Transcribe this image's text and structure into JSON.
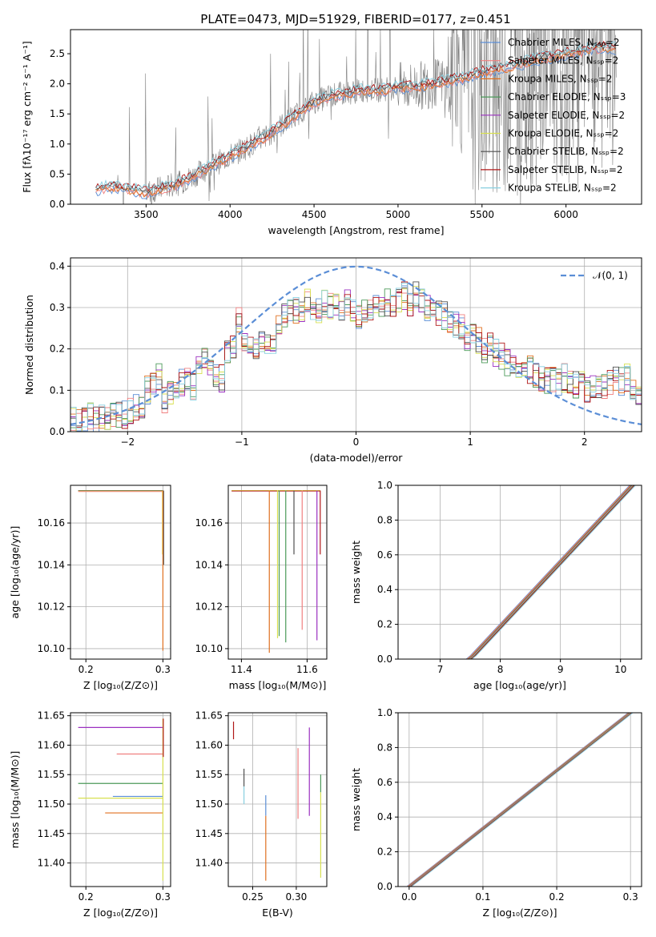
{
  "figure": {
    "title": "PLATE=0473, MJD=51929, FIBERID=0177, z=0.451"
  },
  "colors": {
    "Chabrier MILES": "#5b8ed6",
    "Salpeter MILES": "#f08080",
    "Kroupa MILES": "#e07020",
    "Chabrier ELODIE": "#4c9a5a",
    "Salpeter ELODIE": "#9b30c0",
    "Kroupa ELODIE": "#d8e050",
    "Chabrier STELIB": "#505050",
    "Salpeter STELIB": "#b01818",
    "Kroupa STELIB": "#87cfe0",
    "data": "#808080",
    "normal": "#5b8ed6"
  },
  "chart_data": [
    {
      "type": "line",
      "panel": "spectrum",
      "xlabel": "wavelength [Angstrom, rest frame]",
      "ylabel": "Flux [fλ10⁻¹⁷ erg cm⁻² s⁻¹ A⁻¹]",
      "xlim": [
        3050,
        6450
      ],
      "ylim": [
        0,
        2.9
      ],
      "xticks": [
        "3500",
        "4000",
        "4500",
        "5000",
        "5500",
        "6000"
      ],
      "yticks": [
        "0.0",
        "0.5",
        "1.0",
        "1.5",
        "2.0",
        "2.5"
      ],
      "legend": [
        "Chabrier MILES, Nₛₛₚ=2",
        "Salpeter MILES, Nₛₛₚ=2",
        "Kroupa MILES, Nₛₛₚ=2",
        "Chabrier ELODIE, Nₛₛₚ=3",
        "Salpeter ELODIE, Nₛₛₚ=2",
        "Kroupa ELODIE, Nₛₛₚ=2",
        "Chabrier STELIB, Nₛₛₚ=2",
        "Salpeter STELIB, Nₛₛₚ=2",
        "Kroupa STELIB, Nₛₛₚ=2"
      ],
      "legend_position": "upper-right",
      "model_continuum": {
        "x": [
          3200,
          3300,
          3500,
          3700,
          3800,
          3900,
          4000,
          4100,
          4200,
          4300,
          4400,
          4500,
          4600,
          4700,
          4800,
          4900,
          5000,
          5100,
          5200,
          5300,
          5400,
          5500,
          5600,
          5700,
          5800,
          5900,
          6000,
          6100,
          6200,
          6300
        ],
        "y": [
          0.25,
          0.3,
          0.2,
          0.35,
          0.5,
          0.65,
          0.8,
          0.95,
          1.1,
          1.3,
          1.5,
          1.7,
          1.8,
          1.85,
          1.9,
          1.9,
          1.95,
          1.95,
          2.0,
          2.05,
          2.1,
          2.2,
          2.25,
          2.3,
          2.4,
          2.45,
          2.5,
          2.55,
          2.6,
          2.6
        ]
      }
    },
    {
      "type": "step",
      "panel": "residual-histogram",
      "xlabel": "(data-model)/error",
      "ylabel": "Normed distribution",
      "xlim": [
        -2.5,
        2.5
      ],
      "ylim": [
        0,
        0.42
      ],
      "xticks": [
        "−2",
        "−1",
        "0",
        "1",
        "2"
      ],
      "yticks": [
        "0.0",
        "0.1",
        "0.2",
        "0.3",
        "0.4"
      ],
      "legend": [
        "𝒩(0, 1)"
      ],
      "legend_position": "upper-right",
      "bin_width": 0.1,
      "x_start": -2.5,
      "base_values": [
        0.03,
        0.025,
        0.03,
        0.035,
        0.03,
        0.035,
        0.04,
        0.04,
        0.045,
        0.04,
        0.05,
        0.055,
        0.06,
        0.1,
        0.11,
        0.13,
        0.08,
        0.09,
        0.1,
        0.12,
        0.13,
        0.11,
        0.15,
        0.17,
        0.14,
        0.13,
        0.13,
        0.19,
        0.21,
        0.27,
        0.23,
        0.2,
        0.21,
        0.22,
        0.2,
        0.22,
        0.26,
        0.28,
        0.3,
        0.29,
        0.3,
        0.31,
        0.3,
        0.29,
        0.31,
        0.3,
        0.3,
        0.29,
        0.31,
        0.3,
        0.28,
        0.3,
        0.29,
        0.31,
        0.3,
        0.31,
        0.3,
        0.32,
        0.33,
        0.31,
        0.33,
        0.32,
        0.3,
        0.31,
        0.29,
        0.28,
        0.27,
        0.26,
        0.25,
        0.23,
        0.24,
        0.22,
        0.2,
        0.21,
        0.19,
        0.18,
        0.17,
        0.16,
        0.15,
        0.14,
        0.15,
        0.14,
        0.13,
        0.12,
        0.13,
        0.12,
        0.13,
        0.12,
        0.11,
        0.12,
        0.1,
        0.11,
        0.1,
        0.11,
        0.12,
        0.13,
        0.12,
        0.13,
        0.11,
        0.1
      ],
      "normal_curve": {
        "mean": 0,
        "sigma": 1
      }
    },
    {
      "type": "line",
      "panel": "age-vs-Z",
      "xlabel": "Z [log₁₀(Z/Z⊙)]",
      "ylabel": "age  [log₁₀(age/yr)]",
      "xlim": [
        0.18,
        0.31
      ],
      "ylim": [
        10.095,
        10.178
      ],
      "xticks": [
        "0.2",
        "0.3"
      ],
      "yticks": [
        "10.10",
        "10.12",
        "10.14",
        "10.16"
      ],
      "hline_y": 10.1755,
      "hline_x": [
        0.19,
        0.3
      ],
      "vlines": [
        {
          "x": 0.2995,
          "y": [
            10.1755,
            10.145
          ],
          "c": "Kroupa ELODIE"
        },
        {
          "x": 0.3,
          "y": [
            10.1755,
            10.099
          ],
          "c": "Kroupa MILES"
        }
      ]
    },
    {
      "type": "line",
      "panel": "age-vs-mass",
      "xlabel": "mass [log₁₀(M/M⊙)]",
      "ylabel": "",
      "xlim": [
        11.36,
        11.66
      ],
      "ylim": [
        10.095,
        10.178
      ],
      "xticks": [
        "11.4",
        "11.6"
      ],
      "yticks": [
        "10.10",
        "10.12",
        "10.14",
        "10.16"
      ],
      "hline_y": 10.1755,
      "hline_x": [
        11.37,
        11.64
      ],
      "vlines": [
        {
          "x": 11.485,
          "y": [
            10.1755,
            10.098
          ],
          "c": "Kroupa MILES"
        },
        {
          "x": 11.51,
          "y": [
            10.1755,
            10.105
          ],
          "c": "Kroupa ELODIE"
        },
        {
          "x": 11.515,
          "y": [
            10.1755,
            10.106
          ],
          "c": "Chabrier ELODIE"
        },
        {
          "x": 11.535,
          "y": [
            10.1755,
            10.103
          ],
          "c": "Chabrier ELODIE"
        },
        {
          "x": 11.56,
          "y": [
            10.1755,
            10.145
          ],
          "c": "Chabrier STELIB"
        },
        {
          "x": 11.585,
          "y": [
            10.1755,
            10.109
          ],
          "c": "Salpeter MILES"
        },
        {
          "x": 11.63,
          "y": [
            10.1755,
            10.104
          ],
          "c": "Salpeter ELODIE"
        },
        {
          "x": 11.64,
          "y": [
            10.1755,
            10.145
          ],
          "c": "Salpeter STELIB"
        }
      ]
    },
    {
      "type": "line",
      "panel": "cumulative-mass-weight-vs-age",
      "xlabel": "age  [log₁₀(age/yr)]",
      "ylabel": "mass weight",
      "xlim": [
        6.3,
        10.35
      ],
      "ylim": [
        0,
        1
      ],
      "xticks": [
        "7",
        "8",
        "9",
        "10"
      ],
      "yticks": [
        "0.0",
        "0.2",
        "0.4",
        "0.6",
        "0.8",
        "1.0"
      ],
      "x": [
        6.45,
        7.48,
        7.55,
        10.2
      ],
      "y": [
        0.0,
        0.0,
        0.02,
        1.0
      ]
    },
    {
      "type": "line",
      "panel": "mass-vs-Z",
      "xlabel": "Z [log₁₀(Z/Z⊙)]",
      "ylabel": "mass [log₁₀(M/M⊙)]",
      "xlim": [
        0.18,
        0.31
      ],
      "ylim": [
        11.36,
        11.655
      ],
      "xticks": [
        "0.2",
        "0.3"
      ],
      "yticks": [
        "11.40",
        "11.45",
        "11.50",
        "11.55",
        "11.60",
        "11.65"
      ],
      "hlines": [
        {
          "y": 11.63,
          "x": [
            0.19,
            0.3
          ],
          "c": "Salpeter ELODIE"
        },
        {
          "y": 11.585,
          "x": [
            0.24,
            0.3
          ],
          "c": "Salpeter MILES"
        },
        {
          "y": 11.535,
          "x": [
            0.19,
            0.3
          ],
          "c": "Chabrier ELODIE"
        },
        {
          "y": 11.513,
          "x": [
            0.235,
            0.3
          ],
          "c": "Chabrier MILES"
        },
        {
          "y": 11.51,
          "x": [
            0.19,
            0.3
          ],
          "c": "Kroupa ELODIE"
        },
        {
          "y": 11.485,
          "x": [
            0.225,
            0.3
          ],
          "c": "Kroupa MILES"
        }
      ],
      "vline": {
        "x": 0.3,
        "y": [
          11.645,
          11.37
        ]
      }
    },
    {
      "type": "line",
      "panel": "mass-vs-EBV",
      "xlabel": "E(B-V)",
      "ylabel": "",
      "xlim": [
        0.222,
        0.335
      ],
      "ylim": [
        11.36,
        11.655
      ],
      "xticks": [
        "0.25",
        "0.30"
      ],
      "yticks": [
        "11.40",
        "11.45",
        "11.50",
        "11.55",
        "11.60",
        "11.65"
      ],
      "vlines": [
        {
          "x": 0.228,
          "y": [
            11.64,
            11.61
          ],
          "c": "Salpeter STELIB"
        },
        {
          "x": 0.24,
          "y": [
            11.56,
            11.53
          ],
          "c": "Chabrier STELIB"
        },
        {
          "x": 0.24,
          "y": [
            11.53,
            11.5
          ],
          "c": "Kroupa STELIB"
        },
        {
          "x": 0.265,
          "y": [
            11.515,
            11.48
          ],
          "c": "Chabrier MILES"
        },
        {
          "x": 0.265,
          "y": [
            11.48,
            11.37
          ],
          "c": "Kroupa MILES"
        },
        {
          "x": 0.302,
          "y": [
            11.595,
            11.475
          ],
          "c": "Salpeter MILES"
        },
        {
          "x": 0.315,
          "y": [
            11.63,
            11.48
          ],
          "c": "Salpeter ELODIE"
        },
        {
          "x": 0.328,
          "y": [
            11.55,
            11.52
          ],
          "c": "Chabrier ELODIE"
        },
        {
          "x": 0.328,
          "y": [
            11.52,
            11.375
          ],
          "c": "Kroupa ELODIE"
        }
      ]
    },
    {
      "type": "line",
      "panel": "cumulative-mass-weight-vs-Z",
      "xlabel": "Z [log₁₀(Z/Z⊙)]",
      "ylabel": "mass weight",
      "xlim": [
        -0.015,
        0.315
      ],
      "ylim": [
        0,
        1
      ],
      "xticks": [
        "0.0",
        "0.1",
        "0.2",
        "0.3"
      ],
      "yticks": [
        "0.0",
        "0.2",
        "0.4",
        "0.6",
        "0.8",
        "1.0"
      ],
      "x": [
        0.0,
        0.3
      ],
      "y": [
        0.0,
        1.0
      ]
    }
  ]
}
